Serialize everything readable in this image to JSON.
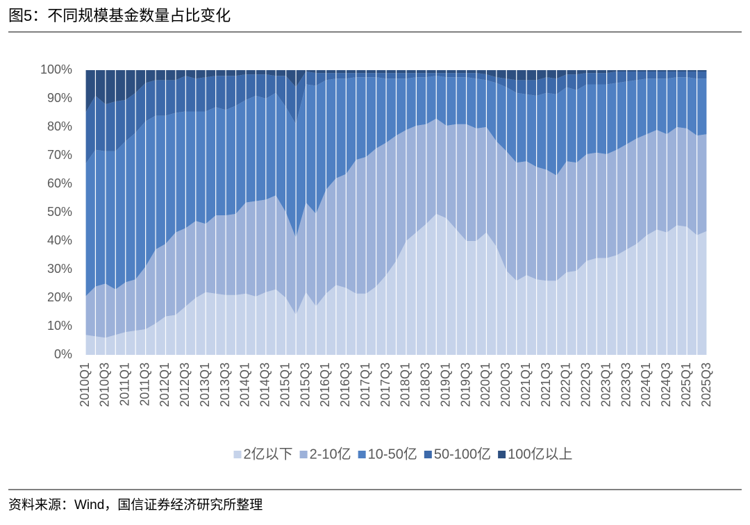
{
  "chart_data": {
    "type": "stacked_area",
    "title": "图5：不同规模基金数量占比变化",
    "source": "资料来源：Wind，国信证券经济研究所整理",
    "categories": [
      "2010Q1",
      null,
      "2010Q3",
      null,
      "2011Q1",
      null,
      "2011Q3",
      null,
      "2012Q1",
      null,
      "2012Q3",
      null,
      "2013Q1",
      null,
      "2013Q3",
      null,
      "2014Q1",
      null,
      "2014Q3",
      null,
      "2015Q1",
      null,
      "2015Q3",
      null,
      "2016Q1",
      null,
      "2016Q3",
      null,
      "2017Q1",
      null,
      "2017Q3",
      null,
      "2018Q1",
      null,
      "2018Q3",
      null,
      "2019Q1",
      null,
      "2019Q3",
      null,
      "2020Q1",
      null,
      "2020Q3",
      null,
      "2021Q1",
      null,
      "2021Q3",
      null,
      "2022Q1",
      null,
      "2022Q3",
      null,
      "2023Q1",
      null,
      "2023Q3",
      null,
      "2024Q1",
      null,
      "2024Q3",
      null,
      "2025Q1",
      null,
      "2025Q3"
    ],
    "series": [
      {
        "name": "2亿以下",
        "color": "#c6d3ea",
        "values": [
          7,
          6.5,
          6,
          7,
          8,
          8.5,
          9,
          11,
          13.5,
          14,
          17,
          20,
          22,
          21.5,
          21,
          21,
          21.5,
          20.5,
          22,
          23,
          20,
          14,
          22,
          17,
          21.5,
          24.5,
          23.5,
          21.5,
          21.5,
          24,
          28,
          33,
          40,
          43,
          46,
          49.5,
          48,
          44,
          40,
          40,
          43,
          38,
          29.5,
          26,
          28,
          26.5,
          26,
          26,
          29,
          29.5,
          33,
          34,
          34,
          35,
          37,
          39,
          42,
          44,
          43,
          45.5,
          45,
          42,
          43.5
        ]
      },
      {
        "name": "2-10亿",
        "color": "#9cb1d9",
        "values": [
          13.5,
          17.5,
          19,
          16,
          17.5,
          18,
          22,
          26,
          25.5,
          29,
          27.5,
          27,
          24,
          27.5,
          28,
          28.5,
          32,
          33.5,
          32.5,
          33,
          30,
          27,
          31.5,
          32.5,
          36.5,
          37.5,
          40,
          47,
          48,
          48.5,
          46.5,
          44,
          39,
          37.5,
          35,
          33.5,
          32.5,
          37,
          41,
          39.5,
          37,
          37,
          42,
          41.5,
          40,
          39.5,
          39,
          37,
          39,
          38,
          37.5,
          37,
          36.5,
          37,
          37,
          37,
          35.5,
          35,
          34.5,
          34.5,
          34.5,
          35,
          34
        ]
      },
      {
        "name": "10-50亿",
        "color": "#4f80c3",
        "values": [
          46.5,
          48,
          46.5,
          48.5,
          49.5,
          51.5,
          51,
          47,
          45,
          42,
          41,
          38.5,
          39.5,
          38,
          37,
          38,
          36,
          37,
          35.5,
          36,
          37,
          40,
          41.5,
          45,
          38.5,
          35,
          33.5,
          29,
          28,
          25,
          22.5,
          20,
          18,
          17,
          16.5,
          15,
          17,
          16.5,
          16.5,
          17.5,
          16.5,
          20.5,
          22.5,
          24.5,
          23.5,
          25,
          27,
          28.5,
          26,
          25.5,
          24.5,
          24,
          24.5,
          23.5,
          22,
          20.5,
          19.5,
          18,
          19.5,
          17.5,
          18,
          20,
          19.5
        ]
      },
      {
        "name": "50-100亿",
        "color": "#3c69aa",
        "values": [
          18,
          19,
          16.5,
          17.5,
          14.5,
          14,
          13.5,
          12.5,
          12.5,
          11.5,
          12.5,
          11.5,
          12,
          11,
          12,
          10.5,
          9,
          7.5,
          8.5,
          6,
          11,
          13,
          4.5,
          4.5,
          2.5,
          2,
          2,
          1.5,
          1.5,
          1.5,
          2,
          2,
          2,
          1.5,
          1.5,
          1,
          1.5,
          1.5,
          1.5,
          2,
          2,
          2,
          3,
          4.5,
          5,
          5.5,
          5.5,
          5.5,
          4.5,
          5.5,
          4,
          4,
          4,
          4,
          3.5,
          3,
          2.5,
          2.5,
          2.5,
          2,
          2,
          2.5,
          2.5
        ]
      },
      {
        "name": "100亿以上",
        "color": "#2d4f80",
        "values": [
          15,
          9,
          12,
          11,
          10.5,
          8,
          4.5,
          3.5,
          3.5,
          3.5,
          2,
          3,
          2.5,
          2,
          2,
          2,
          1.5,
          1.5,
          1.5,
          2,
          2,
          6,
          0.5,
          1,
          1,
          1,
          1,
          1,
          1,
          1,
          1,
          1,
          1,
          1,
          1,
          1,
          1,
          1,
          1,
          1,
          1.5,
          2.5,
          3,
          3.5,
          3.5,
          3.5,
          2.5,
          3,
          1.5,
          1.5,
          1,
          1,
          1,
          0.5,
          0.5,
          0.5,
          0.5,
          0.5,
          0.5,
          0.5,
          0.5,
          0.5,
          0.5
        ]
      }
    ],
    "ylim": [
      0,
      100
    ],
    "yticks": [
      {
        "value": 0,
        "label": "0%"
      },
      {
        "value": 10,
        "label": "10%"
      },
      {
        "value": 20,
        "label": "20%"
      },
      {
        "value": 30,
        "label": "30%"
      },
      {
        "value": 40,
        "label": "40%"
      },
      {
        "value": 50,
        "label": "50%"
      },
      {
        "value": 60,
        "label": "60%"
      },
      {
        "value": 70,
        "label": "70%"
      },
      {
        "value": 80,
        "label": "80%"
      },
      {
        "value": 90,
        "label": "90%"
      },
      {
        "value": 100,
        "label": "100%"
      }
    ]
  }
}
